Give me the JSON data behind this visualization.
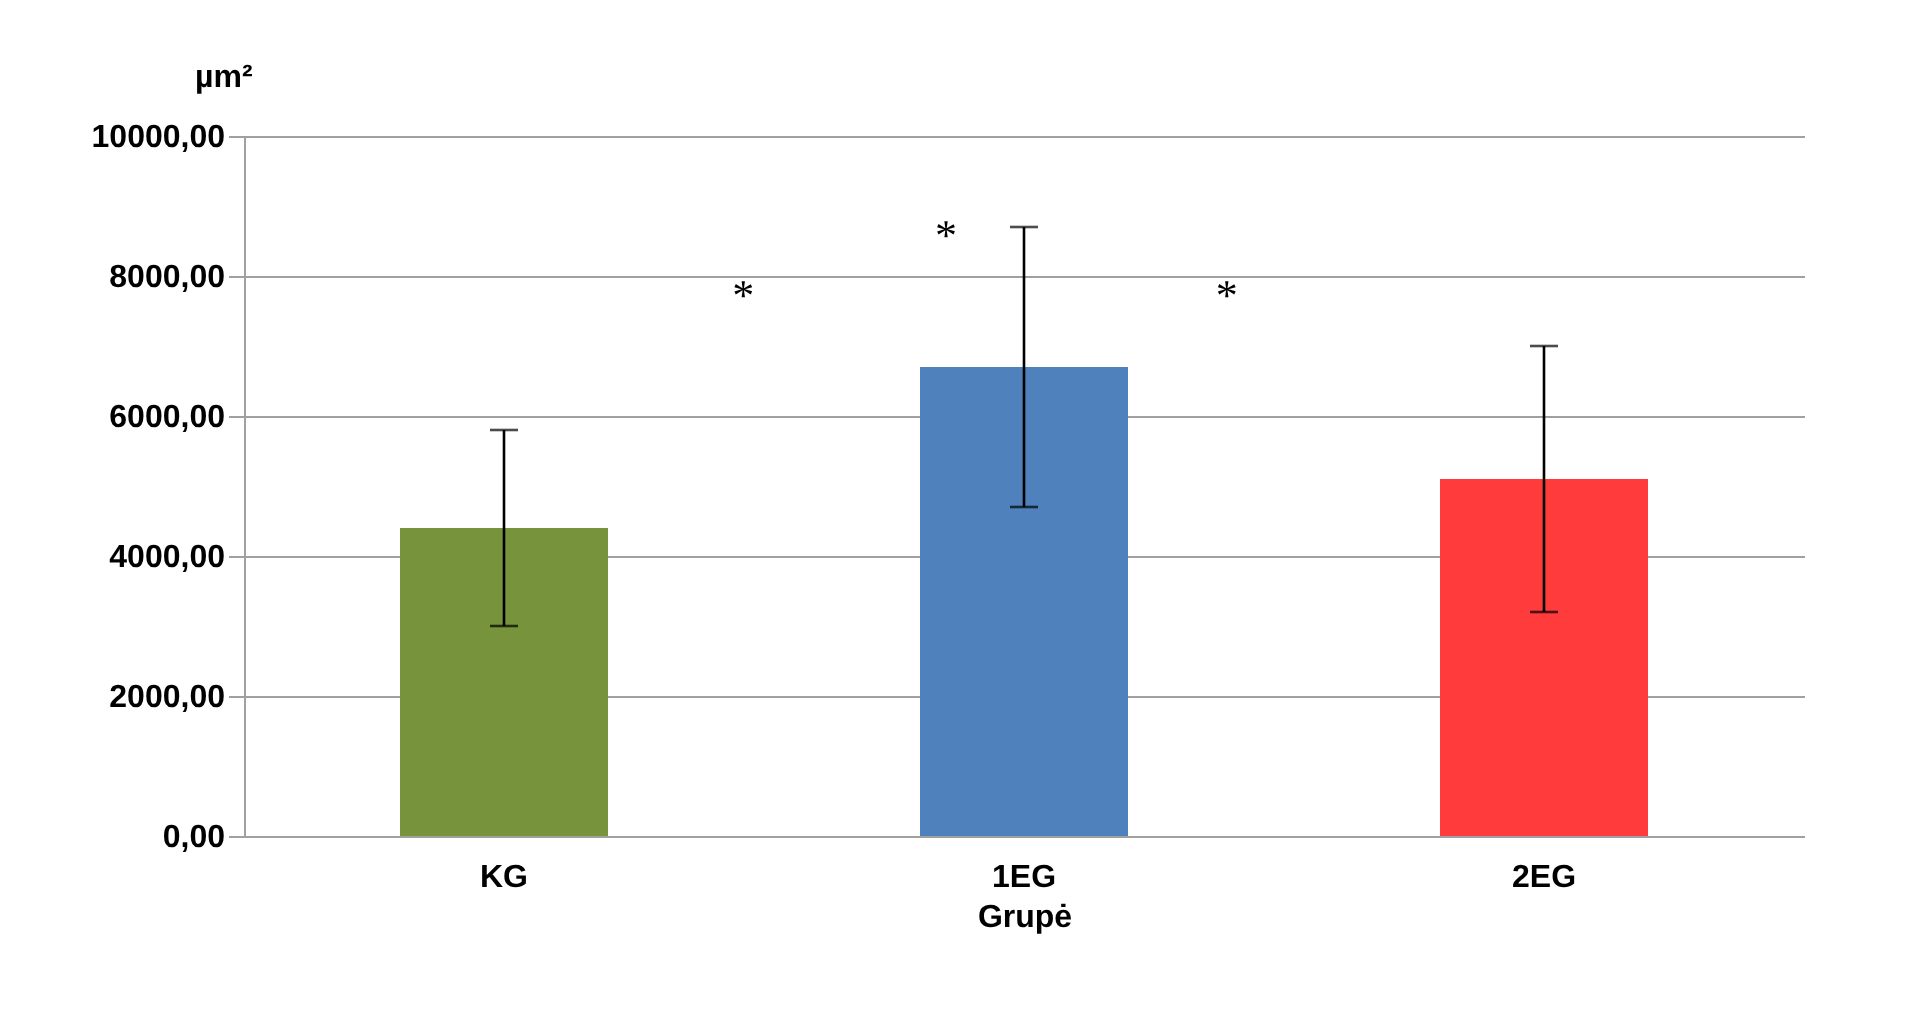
{
  "chart_data": {
    "type": "bar",
    "xlabel": "Grupė",
    "ylabel": "µm²",
    "categories": [
      "KG",
      "1EG",
      "2EG"
    ],
    "values": [
      4400,
      6700,
      5100
    ],
    "colors": [
      "#77933c",
      "#4f81bd",
      "#ff3b3b"
    ],
    "errors": [
      1400,
      2000,
      1900
    ],
    "ylim": [
      0,
      10000
    ],
    "yticks": [
      {
        "value": 0,
        "label": "0,00"
      },
      {
        "value": 2000,
        "label": "2000,00"
      },
      {
        "value": 4000,
        "label": "4000,00"
      },
      {
        "value": 6000,
        "label": "6000,00"
      },
      {
        "value": 8000,
        "label": "8000,00"
      },
      {
        "value": 10000,
        "label": "10000,00"
      }
    ],
    "grid": "y",
    "annotations": [
      "*",
      "*",
      "*"
    ]
  }
}
